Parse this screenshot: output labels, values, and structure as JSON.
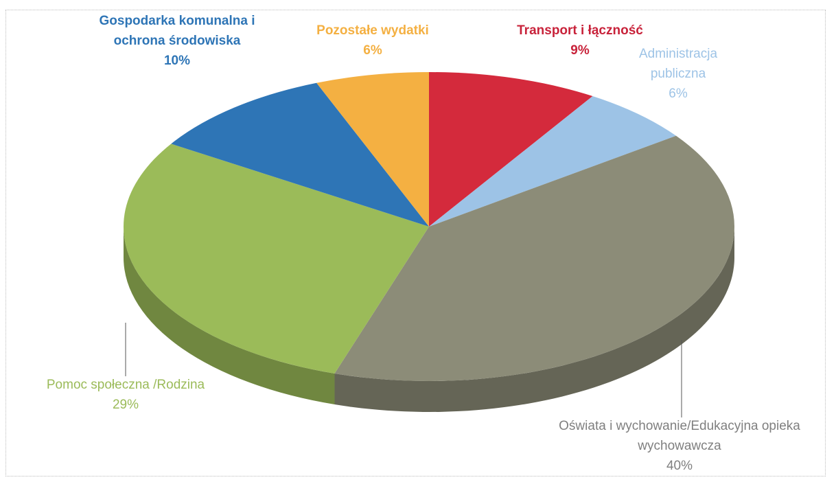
{
  "chart_data": {
    "type": "pie",
    "categories": [
      "Transport i łączność",
      "Administracja publiczna",
      "Oświata i wychowanie/Edukacyjna opieka wychowawcza",
      "Pomoc społeczna /Rodzina",
      "Gospodarka komunalna i ochrona środowiska",
      "Pozostałe wydatki"
    ],
    "values": [
      9,
      6,
      40,
      29,
      10,
      6
    ],
    "value_labels": [
      "9%",
      "6%",
      "40%",
      "29%",
      "10%",
      "6%"
    ],
    "colors": [
      "#d42a3c",
      "#9dc3e6",
      "#8c8c78",
      "#9bbb59",
      "#2e75b6",
      "#f4b042"
    ]
  }
}
